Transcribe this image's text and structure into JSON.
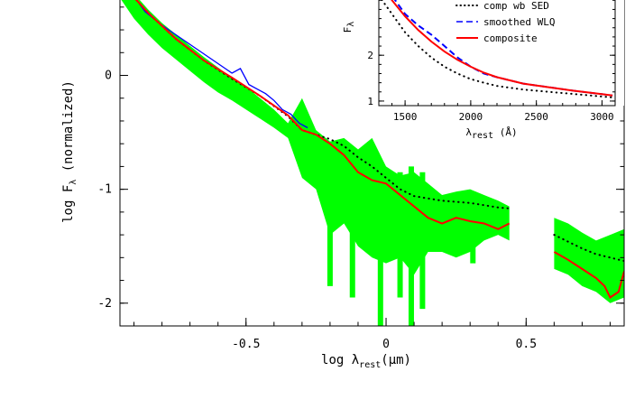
{
  "chart_data": [
    {
      "type": "line",
      "xlabel": "log λrest (μm)",
      "ylabel": "log Fλ (normalized)",
      "xlim": [
        -0.95,
        0.85
      ],
      "ylim": [
        -2.2,
        0.9
      ],
      "x_ticks": [
        -0.5,
        0,
        0.5
      ],
      "x_tick_labels": [
        "-0.5",
        "0",
        "0.5"
      ],
      "y_ticks": [
        0,
        -1,
        -2
      ],
      "y_tick_labels": [
        "0",
        "-1",
        "-2"
      ],
      "series": [
        {
          "id": "envelope",
          "style": "band",
          "color": "#00ff00",
          "x": [
            -0.95,
            -0.9,
            -0.85,
            -0.8,
            -0.75,
            -0.7,
            -0.65,
            -0.6,
            -0.55,
            -0.5,
            -0.45,
            -0.4,
            -0.35,
            -0.3,
            -0.25,
            -0.2,
            -0.15,
            -0.1,
            -0.05,
            0.0,
            0.05,
            0.1,
            0.15,
            0.2,
            0.25,
            0.3,
            0.35,
            0.4,
            0.44
          ],
          "upper": [
            0.88,
            0.72,
            0.58,
            0.46,
            0.36,
            0.26,
            0.16,
            0.07,
            -0.02,
            -0.1,
            -0.2,
            -0.3,
            -0.42,
            -0.2,
            -0.48,
            -0.58,
            -0.55,
            -0.65,
            -0.55,
            -0.8,
            -0.88,
            -0.85,
            -0.95,
            -1.05,
            -1.02,
            -1.0,
            -1.05,
            -1.1,
            -1.15
          ],
          "lower": [
            0.68,
            0.5,
            0.36,
            0.24,
            0.14,
            0.04,
            -0.06,
            -0.15,
            -0.22,
            -0.3,
            -0.38,
            -0.46,
            -0.55,
            -0.9,
            -1.0,
            -1.4,
            -1.3,
            -1.5,
            -1.6,
            -1.65,
            -1.6,
            -1.75,
            -1.55,
            -1.55,
            -1.6,
            -1.55,
            -1.45,
            -1.4,
            -1.45
          ]
        },
        {
          "id": "envelope-ir",
          "style": "band",
          "color": "#00ff00",
          "x": [
            0.6,
            0.65,
            0.7,
            0.75,
            0.8,
            0.85
          ],
          "upper": [
            -1.25,
            -1.3,
            -1.38,
            -1.45,
            -1.4,
            -1.35
          ],
          "lower": [
            -1.7,
            -1.75,
            -1.85,
            -1.9,
            -2.0,
            -1.95
          ]
        },
        {
          "id": "spikes",
          "style": "spikes",
          "color": "#00ff00",
          "spikes": [
            [
              -0.02,
              -0.78,
              -2.2
            ],
            [
              0.09,
              -0.8,
              -2.2
            ],
            [
              0.13,
              -0.85,
              -2.05
            ],
            [
              -0.12,
              -0.7,
              -1.95
            ],
            [
              -0.2,
              -0.6,
              -1.85
            ],
            [
              0.05,
              -0.85,
              -1.95
            ],
            [
              0.31,
              -1.02,
              -1.65
            ]
          ]
        },
        {
          "id": "observed",
          "style": "solid",
          "color": "#0000ff",
          "x": [
            -0.95,
            -0.92,
            -0.89,
            -0.86,
            -0.83,
            -0.8,
            -0.55,
            -0.52,
            -0.49,
            -0.46,
            -0.43,
            -0.4,
            -0.37,
            -0.34,
            -0.31,
            -0.28
          ],
          "y": [
            0.82,
            0.74,
            0.66,
            0.56,
            0.5,
            0.44,
            0.02,
            0.06,
            -0.08,
            -0.12,
            -0.16,
            -0.22,
            -0.3,
            -0.34,
            -0.42,
            -0.46
          ]
        },
        {
          "id": "comp-wb-sed",
          "style": "dotted",
          "color": "#000000",
          "name": "comp wb SED",
          "x": [
            -0.95,
            -0.85,
            -0.75,
            -0.65,
            -0.55,
            -0.45,
            -0.35,
            -0.3,
            -0.25,
            -0.2,
            -0.15,
            -0.1,
            -0.05,
            0.0,
            0.05,
            0.1,
            0.2,
            0.3,
            0.4,
            0.45
          ],
          "y": [
            0.82,
            0.55,
            0.32,
            0.13,
            -0.03,
            -0.18,
            -0.36,
            -0.48,
            -0.52,
            -0.56,
            -0.62,
            -0.72,
            -0.8,
            -0.9,
            -1.0,
            -1.06,
            -1.1,
            -1.12,
            -1.16,
            -1.17
          ]
        },
        {
          "id": "comp-wb-sed-ir",
          "style": "dotted",
          "color": "#000000",
          "x": [
            0.6,
            0.65,
            0.7,
            0.75,
            0.8,
            0.85
          ],
          "y": [
            -1.4,
            -1.46,
            -1.52,
            -1.57,
            -1.6,
            -1.63
          ]
        },
        {
          "id": "composite",
          "style": "solid",
          "color": "#ff0000",
          "name": "composite",
          "x": [
            -0.95,
            -0.85,
            -0.75,
            -0.65,
            -0.55,
            -0.45,
            -0.35,
            -0.3,
            -0.25,
            -0.2,
            -0.15,
            -0.1,
            -0.05,
            0.0,
            0.05,
            0.1,
            0.15,
            0.2,
            0.25,
            0.3,
            0.35,
            0.4,
            0.44
          ],
          "y": [
            0.82,
            0.55,
            0.32,
            0.13,
            -0.02,
            -0.18,
            -0.35,
            -0.48,
            -0.52,
            -0.6,
            -0.7,
            -0.85,
            -0.92,
            -0.95,
            -1.05,
            -1.15,
            -1.25,
            -1.3,
            -1.25,
            -1.28,
            -1.3,
            -1.35,
            -1.3
          ]
        },
        {
          "id": "composite-ir",
          "style": "solid",
          "color": "#ff0000",
          "x": [
            0.6,
            0.65,
            0.7,
            0.75,
            0.78,
            0.8,
            0.83,
            0.85
          ],
          "y": [
            -1.55,
            -1.62,
            -1.7,
            -1.78,
            -1.85,
            -1.95,
            -1.9,
            -1.72
          ]
        }
      ]
    },
    {
      "type": "line",
      "xlabel": "λrest (Å)",
      "ylabel": "Fλ",
      "xlim": [
        1300,
        3100
      ],
      "ylim": [
        0.9,
        3.6
      ],
      "x_ticks": [
        1500,
        2000,
        2500,
        3000
      ],
      "x_tick_labels": [
        "1500",
        "2000",
        "2500",
        "3000"
      ],
      "y_ticks": [
        1,
        2
      ],
      "y_tick_labels": [
        "1",
        "2"
      ],
      "series": [
        {
          "id": "inset-comp-wb",
          "style": "dotted",
          "color": "#000000",
          "name": "comp wb SED",
          "x": [
            1300,
            1400,
            1500,
            1600,
            1700,
            1800,
            1900,
            2000,
            2100,
            2200,
            2400,
            2600,
            2800,
            3000,
            3080
          ],
          "y": [
            3.3,
            2.9,
            2.5,
            2.2,
            1.95,
            1.75,
            1.6,
            1.48,
            1.4,
            1.33,
            1.25,
            1.2,
            1.15,
            1.1,
            1.08
          ]
        },
        {
          "id": "inset-smoothed",
          "style": "dashed",
          "color": "#0000ff",
          "name": "smoothed WLQ",
          "x": [
            1300,
            1400,
            1500,
            1600,
            1700,
            1800,
            1900,
            2000,
            2100,
            2200,
            2400,
            2600,
            2800,
            3000,
            3080
          ],
          "y": [
            3.6,
            3.3,
            2.9,
            2.65,
            2.45,
            2.2,
            1.95,
            1.75,
            1.6,
            1.52,
            1.38,
            1.3,
            1.22,
            1.15,
            1.12
          ]
        },
        {
          "id": "inset-composite",
          "style": "solid",
          "color": "#ff0000",
          "name": "composite",
          "x": [
            1300,
            1400,
            1500,
            1600,
            1700,
            1800,
            1900,
            2000,
            2100,
            2200,
            2400,
            2600,
            2800,
            3000,
            3080
          ],
          "y": [
            3.6,
            3.2,
            2.85,
            2.55,
            2.3,
            2.08,
            1.9,
            1.75,
            1.62,
            1.52,
            1.38,
            1.3,
            1.22,
            1.15,
            1.12
          ]
        }
      ],
      "legend": {
        "placement": "top-right",
        "entries": [
          {
            "label": "comp wb SED",
            "style": "dotted",
            "color": "#000000"
          },
          {
            "label": "smoothed WLQ",
            "style": "dashed",
            "color": "#0000ff"
          },
          {
            "label": "composite",
            "style": "solid",
            "color": "#ff0000"
          }
        ]
      }
    }
  ]
}
